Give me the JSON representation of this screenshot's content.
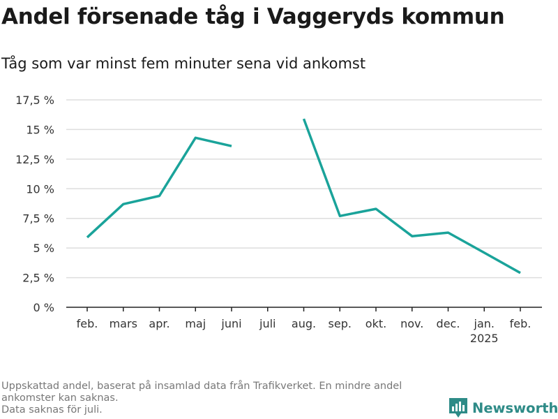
{
  "header": {
    "title": "Andel försenade tåg i Vaggeryds kommun",
    "subtitle": "Tåg som var minst fem minuter sena vid ankomst"
  },
  "chart_data": {
    "type": "line",
    "categories": [
      "feb.",
      "mars",
      "apr.",
      "maj",
      "juni",
      "juli",
      "aug.",
      "sep.",
      "okt.",
      "nov.",
      "dec.",
      "jan.",
      "feb."
    ],
    "category_sublabels": [
      "",
      "",
      "",
      "",
      "",
      "",
      "",
      "",
      "",
      "",
      "",
      "2025",
      ""
    ],
    "series": [
      {
        "values": [
          5.9,
          8.7,
          9.4,
          14.3,
          13.6,
          null,
          15.9,
          7.7,
          8.3,
          6.0,
          6.3,
          4.6,
          2.9
        ],
        "color": "#1aa39a"
      }
    ],
    "yticks": [
      0,
      2.5,
      5,
      7.5,
      10,
      12.5,
      15,
      17.5
    ],
    "ytick_labels": [
      "0 %",
      "2,5 %",
      "5 %",
      "7,5 %",
      "10 %",
      "12,5 %",
      "15 %",
      "17,5 %"
    ],
    "ylim": [
      0,
      17.5
    ],
    "grid": true
  },
  "footnote": {
    "line1": "Uppskattad andel, baserat på insamlad data från Trafikverket. En mindre andel",
    "line2": "ankomster kan saknas.",
    "line3": "Data saknas för juli."
  },
  "logo": {
    "text": "Newsworthy",
    "icon": "bar-chart-logo-icon",
    "color": "#2e8b87"
  }
}
